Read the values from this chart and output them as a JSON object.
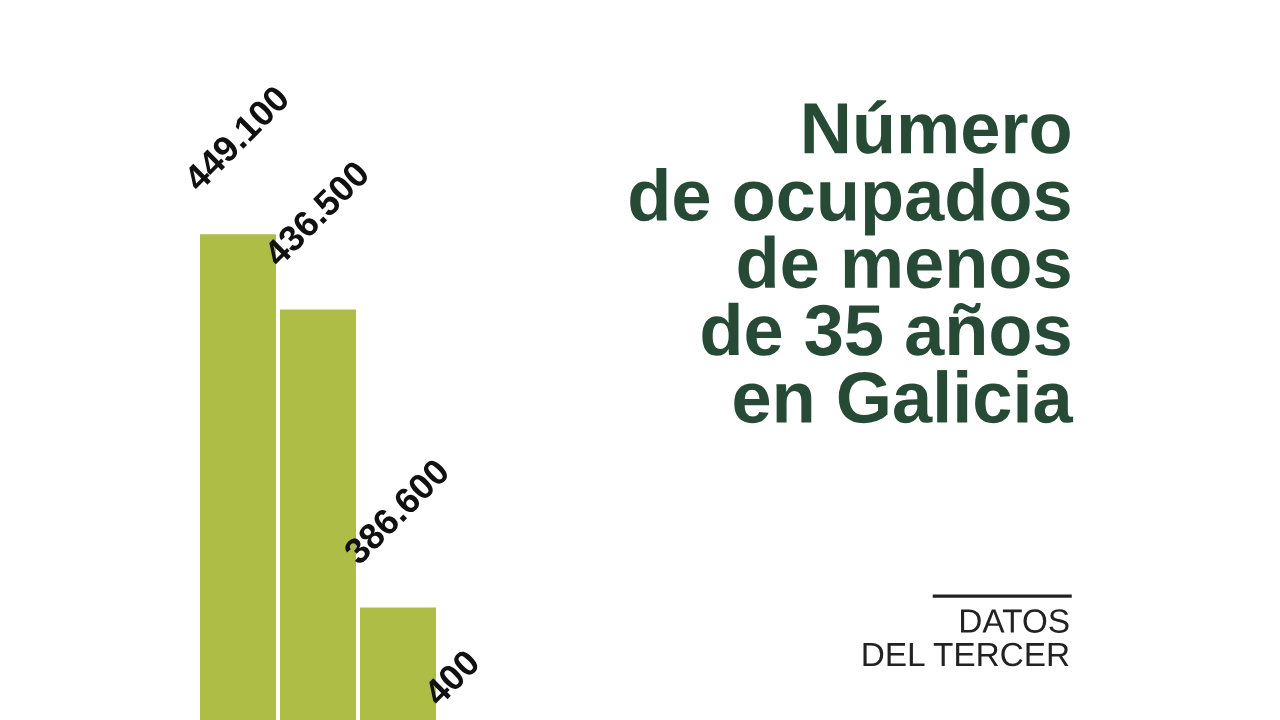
{
  "chart_data": {
    "type": "bar",
    "title": "Número\nde ocupados\nde menos\nde 35 años\nen Galicia",
    "subtitle": "DATOS\nDEL TERCER",
    "categories": [
      null,
      null,
      null
    ],
    "values": [
      449100,
      436500,
      386600
    ],
    "value_labels": [
      "449.100",
      "436.500",
      "386.600"
    ],
    "annotations": [
      "400"
    ],
    "color": "#adbd45"
  }
}
